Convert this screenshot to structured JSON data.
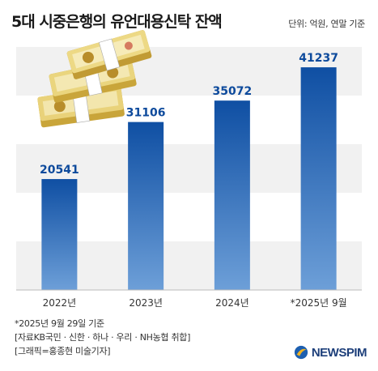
{
  "header": {
    "title": "5대 시중은행의 유언대용신탁 잔액",
    "unit": "단위: 억원, 연말 기준"
  },
  "chart_data": {
    "type": "bar",
    "title": "5대 시중은행의 유언대용신탁 잔액",
    "categories": [
      "2022년",
      "2023년",
      "2024년",
      "*2025년 9월"
    ],
    "values": [
      20541,
      31106,
      35072,
      41237
    ],
    "ylim": [
      0,
      45000
    ],
    "grid": "horizontal bands",
    "bar_color_top": "#0f4fa3",
    "bar_color_bottom": "#6d9fd8",
    "label_color": "#0d4a9c"
  },
  "footer": {
    "note1": "*2025년 9월 29일 기준",
    "note2": "[자료KB국민 · 신한 · 하나 · 우리 · NH농협 취합]",
    "note3": "[그래픽=홍종현 미술기자]"
  },
  "branding": {
    "logo_text": "NEWSPIM",
    "logo_icon": "newspim-logo-icon",
    "money_image": "korean-won-bill-stack-icon"
  }
}
